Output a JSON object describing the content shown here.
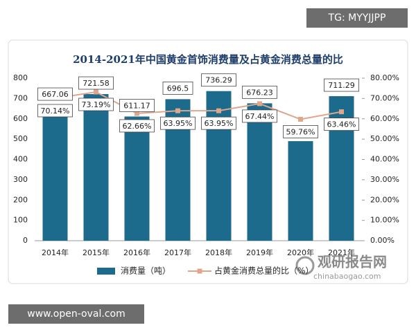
{
  "chart_data": {
    "type": "bar",
    "title": "2014-2021年中国黄金首饰消费量及占黄金消费总量的比",
    "categories": [
      "2014年",
      "2015年",
      "2016年",
      "2017年",
      "2018年",
      "2019年",
      "2020年",
      "2021年"
    ],
    "series": [
      {
        "name": "消费量（吨）",
        "type": "bar",
        "color": "#1c6a8c",
        "values": [
          667.06,
          721.58,
          611.17,
          696.5,
          736.29,
          676.23,
          490,
          711.29
        ],
        "value_labels": [
          "667.06",
          "721.58",
          "611.17",
          "696.5",
          "736.29",
          "676.23",
          null,
          "711.29"
        ]
      },
      {
        "name": "占黄金消费总量的比（%）",
        "type": "line",
        "axis": "y2",
        "color": "#dfa68c",
        "values": [
          70.14,
          73.19,
          62.66,
          63.95,
          63.95,
          67.44,
          59.76,
          63.46
        ],
        "value_labels": [
          "70.14%",
          "73.19%",
          "62.66%",
          "63.95%",
          "63.95%",
          "67.44%",
          "59.76%",
          "63.46%"
        ]
      }
    ],
    "ylim": [
      0,
      800
    ],
    "yticks": [
      0,
      100,
      200,
      300,
      400,
      500,
      600,
      700,
      800
    ],
    "y2lim": [
      0,
      80
    ],
    "y2ticks": [
      {
        "value": 0,
        "label": "0.00%"
      },
      {
        "value": 10,
        "label": "10.00%"
      },
      {
        "value": 20,
        "label": "20.00%"
      },
      {
        "value": 30,
        "label": "30.00%"
      },
      {
        "value": 40,
        "label": "40.00%"
      },
      {
        "value": 50,
        "label": "50.00%"
      },
      {
        "value": 60,
        "label": "60.00%"
      },
      {
        "value": 70,
        "label": "70.00%"
      },
      {
        "value": 80,
        "label": "80.00%"
      }
    ],
    "grid": false
  },
  "watermarks": {
    "top": "TG: MYYJJPP",
    "bottom": "www.open-oval.com",
    "logo": "观研报告网",
    "logo_url": "chinabaogao.com"
  }
}
